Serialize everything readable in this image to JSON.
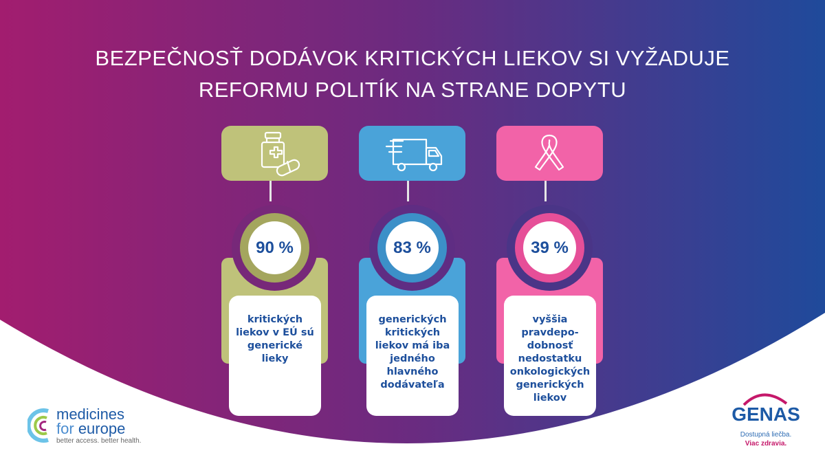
{
  "title": {
    "line1": "BEZPEČNOSŤ DODÁVOK KRITICKÝCH LIEKOV SI VYŽADUJE",
    "line2": "REFORMU POLITÍK NA STRANE DOPYTU"
  },
  "cards": [
    {
      "icon": "medicine-bottle-pill-icon",
      "value": "90 %",
      "text": "kritických liekov v EÚ sú generické lieky",
      "color": "#bfc27a",
      "ring": "#a4a65e"
    },
    {
      "icon": "delivery-truck-icon",
      "value": "83 %",
      "text": "generických kritických liekov má iba jedného hlavného dodávateľa",
      "color": "#4aa3d9",
      "ring": "#3c90c8"
    },
    {
      "icon": "awareness-ribbon-icon",
      "value": "39 %",
      "text": "vyššia pravdepo-dobnosť nedostatku onkologických generických liekov",
      "color": "#f263a8",
      "ring": "#e64f98"
    }
  ],
  "logos": {
    "left": {
      "line1": "medicines",
      "line2a": "for",
      "line2b": "europe",
      "tagline": "better access. better health."
    },
    "right": {
      "name": "GENAS",
      "tag1": "Dostupná liečba.",
      "tag2": "Viac zdravia."
    }
  },
  "colors": {
    "gradient_left": "#a21d6f",
    "gradient_mid": "#6a2b80",
    "gradient_right": "#1f4a9b"
  }
}
